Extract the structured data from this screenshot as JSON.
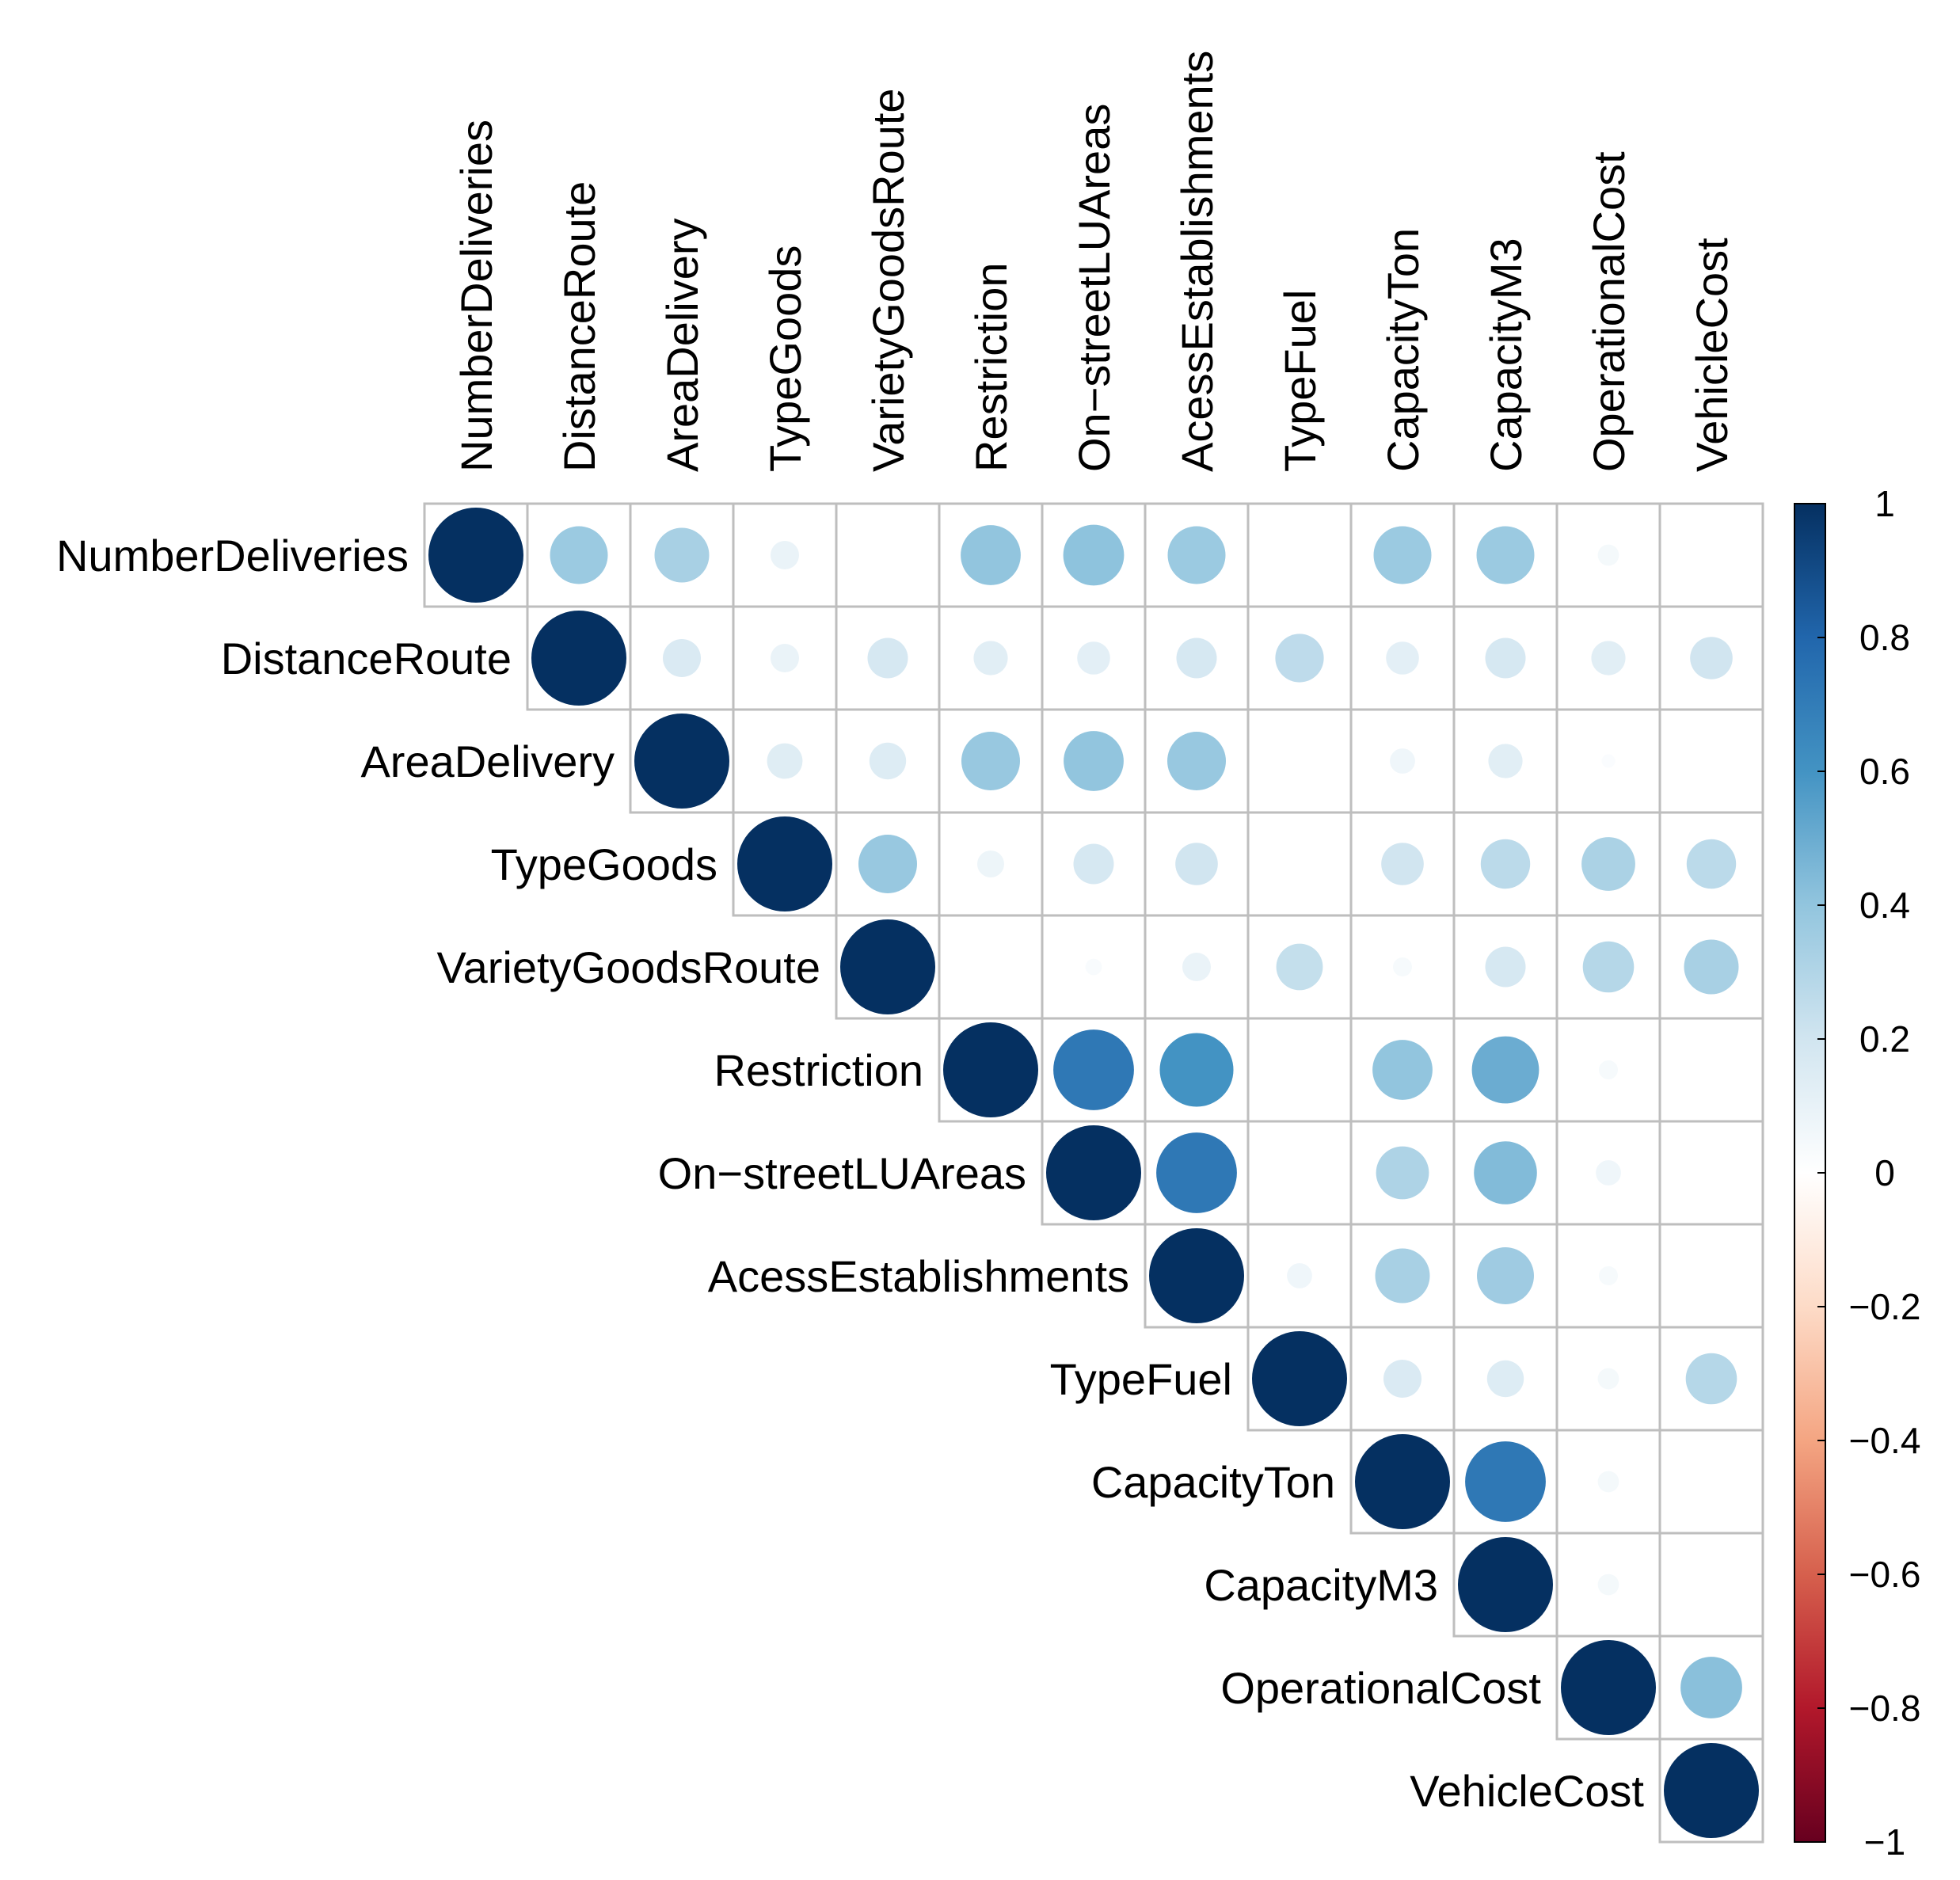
{
  "chart_data": {
    "type": "heatmap",
    "style": "correlation-upper-circle",
    "variables": [
      "NumberDeliveries",
      "DistanceRoute",
      "AreaDelivery",
      "TypeGoods",
      "VarietyGoodsRoute",
      "Restriction",
      "On−streetLUAreas",
      "AcessEstablishments",
      "TypeFuel",
      "CapacityTon",
      "CapacityM3",
      "OperationalCost",
      "VehicleCost"
    ],
    "matrix": [
      [
        1,
        0.37,
        0.33,
        0.09,
        0,
        0.4,
        0.41,
        0.37,
        0,
        0.37,
        0.37,
        0.05,
        0
      ],
      [
        0.37,
        1,
        0.16,
        0.09,
        0.18,
        0.13,
        0.12,
        0.18,
        0.26,
        0.12,
        0.18,
        0.13,
        0.2
      ],
      [
        0.33,
        0.16,
        1,
        0.14,
        0.15,
        0.38,
        0.4,
        0.38,
        0,
        0.07,
        0.13,
        0.02,
        0
      ],
      [
        0.09,
        0.09,
        0.14,
        1,
        0.38,
        0.08,
        0.18,
        0.2,
        0,
        0.2,
        0.27,
        0.32,
        0.27
      ],
      [
        0,
        0.18,
        0.15,
        0.38,
        1,
        0,
        0.03,
        0.09,
        0.24,
        0.04,
        0.18,
        0.29,
        0.33
      ],
      [
        0.4,
        0.13,
        0.38,
        0.08,
        0,
        1,
        0.72,
        0.6,
        0,
        0.4,
        0.5,
        0.04,
        0
      ],
      [
        0.41,
        0.12,
        0.4,
        0.18,
        0.03,
        0.72,
        1,
        0.72,
        0,
        0.31,
        0.44,
        0.07,
        0
      ],
      [
        0.37,
        0.18,
        0.38,
        0.2,
        0.09,
        0.6,
        0.72,
        1,
        0.07,
        0.33,
        0.36,
        0.04,
        0
      ],
      [
        0,
        0.26,
        0,
        0,
        0.24,
        0,
        0,
        0.07,
        1,
        0.16,
        0.15,
        0.05,
        0.29
      ],
      [
        0.37,
        0.12,
        0.07,
        0.2,
        0.04,
        0.4,
        0.31,
        0.33,
        0.16,
        1,
        0.72,
        0.05,
        0
      ],
      [
        0.37,
        0.18,
        0.13,
        0.27,
        0.18,
        0.5,
        0.44,
        0.36,
        0.15,
        0.72,
        1,
        0.05,
        0
      ],
      [
        0.05,
        0.13,
        0.02,
        0.32,
        0.29,
        0.04,
        0.07,
        0.04,
        0.05,
        0.05,
        0.05,
        1,
        0.42
      ],
      [
        0,
        0.2,
        0,
        0.27,
        0.33,
        0,
        0,
        0,
        0.29,
        0,
        0,
        0.42,
        1
      ]
    ],
    "color_scale": {
      "min": -1,
      "max": 1,
      "ticks": [
        "1",
        "0.8",
        "0.6",
        "0.4",
        "0.2",
        "0",
        "−0.2",
        "−0.4",
        "−0.6",
        "−0.8",
        "−1"
      ],
      "colors": [
        "#67001f",
        "#b2182b",
        "#d6604d",
        "#f4a582",
        "#fddbc7",
        "#ffffff",
        "#d1e5f0",
        "#92c5de",
        "#4393c3",
        "#2166ac",
        "#053061"
      ]
    },
    "legend_position": "right"
  }
}
